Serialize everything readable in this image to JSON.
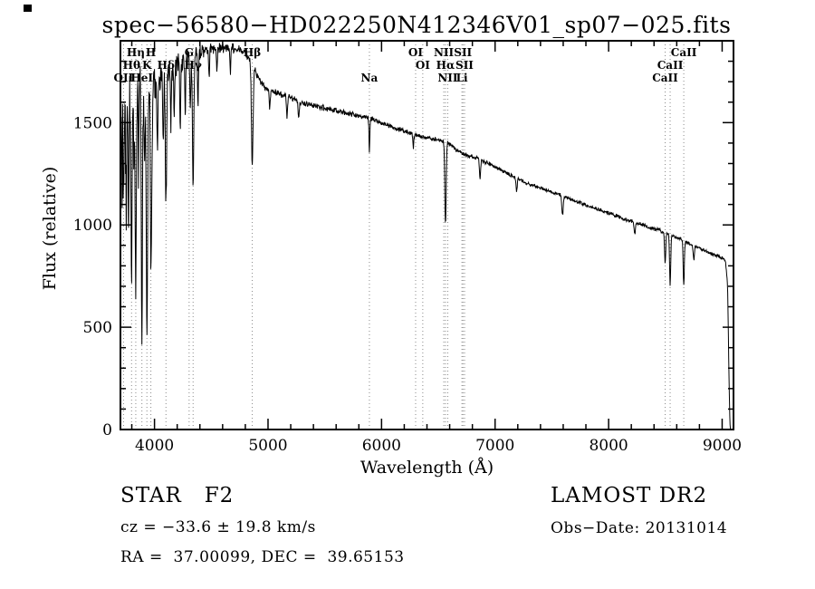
{
  "chart_data": {
    "type": "line",
    "title": "spec−56580−HD022250N412346V01_sp07−025.fits",
    "xlabel": "Wavelength (Å)",
    "ylabel": "Flux (relative)",
    "xlim": [
      3700,
      9100
    ],
    "ylim": [
      0,
      1900
    ],
    "xticks": [
      4000,
      5000,
      6000,
      7000,
      8000,
      9000
    ],
    "x_minor_step": 200,
    "yticks": [
      0,
      500,
      1000,
      1500
    ],
    "y_minor_step": 100,
    "grid": false,
    "legend": "none",
    "continuum": [
      [
        3700,
        1480
      ],
      [
        3740,
        1560
      ],
      [
        3790,
        1600
      ],
      [
        3840,
        1640
      ],
      [
        3890,
        1650
      ],
      [
        3940,
        1670
      ],
      [
        3990,
        1700
      ],
      [
        4040,
        1710
      ],
      [
        4090,
        1740
      ],
      [
        4150,
        1770
      ],
      [
        4250,
        1800
      ],
      [
        4350,
        1830
      ],
      [
        4450,
        1855
      ],
      [
        4550,
        1862
      ],
      [
        4650,
        1868
      ],
      [
        4750,
        1858
      ],
      [
        4820,
        1830
      ],
      [
        4880,
        1762
      ],
      [
        4950,
        1685
      ],
      [
        5010,
        1660
      ],
      [
        5100,
        1640
      ],
      [
        5200,
        1620
      ],
      [
        5300,
        1598
      ],
      [
        5400,
        1585
      ],
      [
        5500,
        1570
      ],
      [
        5600,
        1558
      ],
      [
        5700,
        1545
      ],
      [
        5800,
        1532
      ],
      [
        5900,
        1520
      ],
      [
        6000,
        1500
      ],
      [
        6100,
        1478
      ],
      [
        6200,
        1458
      ],
      [
        6300,
        1440
      ],
      [
        6400,
        1425
      ],
      [
        6500,
        1415
      ],
      [
        6570,
        1408
      ],
      [
        6650,
        1370
      ],
      [
        6750,
        1340
      ],
      [
        6850,
        1325
      ],
      [
        7000,
        1285
      ],
      [
        7100,
        1255
      ],
      [
        7200,
        1225
      ],
      [
        7300,
        1200
      ],
      [
        7400,
        1180
      ],
      [
        7500,
        1160
      ],
      [
        7600,
        1140
      ],
      [
        7700,
        1118
      ],
      [
        7800,
        1098
      ],
      [
        7900,
        1078
      ],
      [
        8000,
        1058
      ],
      [
        8100,
        1038
      ],
      [
        8200,
        1018
      ],
      [
        8300,
        1000
      ],
      [
        8400,
        982
      ],
      [
        8500,
        962
      ],
      [
        8600,
        938
      ],
      [
        8700,
        912
      ],
      [
        8800,
        885
      ],
      [
        8900,
        860
      ],
      [
        9000,
        838
      ],
      [
        9030,
        822
      ],
      [
        9048,
        700
      ],
      [
        9058,
        350
      ],
      [
        9066,
        80
      ],
      [
        9072,
        0
      ]
    ],
    "absorption_lines": [
      {
        "wl": 3712,
        "depth": 300,
        "sigma": 3
      },
      {
        "wl": 3727,
        "depth": 420,
        "sigma": 4
      },
      {
        "wl": 3750,
        "depth": 520,
        "sigma": 4
      },
      {
        "wl": 3771,
        "depth": 650,
        "sigma": 4
      },
      {
        "wl": 3798,
        "depth": 820,
        "sigma": 5
      },
      {
        "wl": 3820,
        "depth": 400,
        "sigma": 3
      },
      {
        "wl": 3835,
        "depth": 980,
        "sigma": 5
      },
      {
        "wl": 3860,
        "depth": 420,
        "sigma": 3
      },
      {
        "wl": 3889,
        "depth": 1150,
        "sigma": 5
      },
      {
        "wl": 3912,
        "depth": 420,
        "sigma": 3
      },
      {
        "wl": 3933,
        "depth": 1150,
        "sigma": 6
      },
      {
        "wl": 3970,
        "depth": 950,
        "sigma": 6
      },
      {
        "wl": 4026,
        "depth": 330,
        "sigma": 4
      },
      {
        "wl": 4077,
        "depth": 380,
        "sigma": 4
      },
      {
        "wl": 4101,
        "depth": 650,
        "sigma": 6
      },
      {
        "wl": 4144,
        "depth": 300,
        "sigma": 4
      },
      {
        "wl": 4173,
        "depth": 250,
        "sigma": 4
      },
      {
        "wl": 4227,
        "depth": 330,
        "sigma": 4
      },
      {
        "wl": 4271,
        "depth": 260,
        "sigma": 4
      },
      {
        "wl": 4315,
        "depth": 250,
        "sigma": 4
      },
      {
        "wl": 4340,
        "depth": 620,
        "sigma": 6
      },
      {
        "wl": 4383,
        "depth": 260,
        "sigma": 4
      },
      {
        "wl": 4481,
        "depth": 150,
        "sigma": 4
      },
      {
        "wl": 4550,
        "depth": 100,
        "sigma": 4
      },
      {
        "wl": 4668,
        "depth": 120,
        "sigma": 4
      },
      {
        "wl": 4861,
        "depth": 490,
        "sigma": 7
      },
      {
        "wl": 5015,
        "depth": 90,
        "sigma": 4
      },
      {
        "wl": 5167,
        "depth": 100,
        "sigma": 5
      },
      {
        "wl": 5270,
        "depth": 80,
        "sigma": 5
      },
      {
        "wl": 5893,
        "depth": 160,
        "sigma": 4
      },
      {
        "wl": 6280,
        "depth": 70,
        "sigma": 4
      },
      {
        "wl": 6563,
        "depth": 400,
        "sigma": 6
      },
      {
        "wl": 6867,
        "depth": 100,
        "sigma": 5
      },
      {
        "wl": 7190,
        "depth": 60,
        "sigma": 5
      },
      {
        "wl": 7594,
        "depth": 90,
        "sigma": 6
      },
      {
        "wl": 8230,
        "depth": 60,
        "sigma": 5
      },
      {
        "wl": 8498,
        "depth": 150,
        "sigma": 5
      },
      {
        "wl": 8542,
        "depth": 245,
        "sigma": 5
      },
      {
        "wl": 8662,
        "depth": 215,
        "sigma": 5
      },
      {
        "wl": 8750,
        "depth": 70,
        "sigma": 5
      }
    ],
    "noise_amplitude": [
      [
        3700,
        260
      ],
      [
        3760,
        210
      ],
      [
        3850,
        160
      ],
      [
        3950,
        120
      ],
      [
        4050,
        85
      ],
      [
        4200,
        60
      ],
      [
        4400,
        42
      ],
      [
        4700,
        30
      ],
      [
        5000,
        20
      ],
      [
        5500,
        17
      ],
      [
        6000,
        15
      ],
      [
        6500,
        13
      ],
      [
        7000,
        11
      ],
      [
        7500,
        10
      ],
      [
        8000,
        11
      ],
      [
        8600,
        12
      ],
      [
        9000,
        10
      ],
      [
        9065,
        5
      ]
    ],
    "marker_lines": [
      3727,
      3798,
      3835,
      3889,
      3933,
      3968,
      4101,
      4305,
      4340,
      4861,
      5893,
      6300,
      6363,
      6548,
      6563,
      6583,
      6708,
      6717,
      6731,
      8498,
      8542,
      8662
    ],
    "line_markers": [
      {
        "label": "Hη",
        "wl": 3835,
        "row": 1
      },
      {
        "label": "H",
        "wl": 3968,
        "row": 1
      },
      {
        "label": "G",
        "wl": 4305,
        "row": 1
      },
      {
        "label": "Hβ",
        "wl": 4861,
        "row": 1
      },
      {
        "label": "OI",
        "wl": 6300,
        "row": 1
      },
      {
        "label": "NII",
        "wl": 6548,
        "row": 1
      },
      {
        "label": "SII",
        "wl": 6717,
        "row": 1
      },
      {
        "label": "CaII",
        "wl": 8662,
        "row": 1
      },
      {
        "label": "Hθ",
        "wl": 3798,
        "row": 2
      },
      {
        "label": "K",
        "wl": 3933,
        "row": 2
      },
      {
        "label": "Hδ",
        "wl": 4101,
        "row": 2
      },
      {
        "label": "Hγ",
        "wl": 4340,
        "row": 2
      },
      {
        "label": "OI",
        "wl": 6363,
        "row": 2
      },
      {
        "label": "Hα",
        "wl": 6563,
        "row": 2
      },
      {
        "label": "SII",
        "wl": 6731,
        "row": 2
      },
      {
        "label": "CaII",
        "wl": 8542,
        "row": 2
      },
      {
        "label": "OII",
        "wl": 3727,
        "row": 3
      },
      {
        "label": "HeI",
        "wl": 3889,
        "row": 3
      },
      {
        "label": "Na",
        "wl": 5893,
        "row": 3
      },
      {
        "label": "NII",
        "wl": 6583,
        "row": 3
      },
      {
        "label": "Li",
        "wl": 6708,
        "row": 3
      },
      {
        "label": "CaII",
        "wl": 8498,
        "row": 3
      }
    ]
  },
  "annotations": {
    "class_line": "STAR   F2",
    "survey": "LAMOST DR2",
    "cz": "cz = −33.6 ± 19.8 km/s",
    "obs_date": "Obs−Date: 20131014",
    "ra_dec": "RA =  37.00099, DEC =  39.65153"
  },
  "colors": {
    "background": "#ffffff",
    "frame": "#000000",
    "spectrum": "#000000",
    "marker_line": "#8a8a8a",
    "text": "#000000"
  }
}
